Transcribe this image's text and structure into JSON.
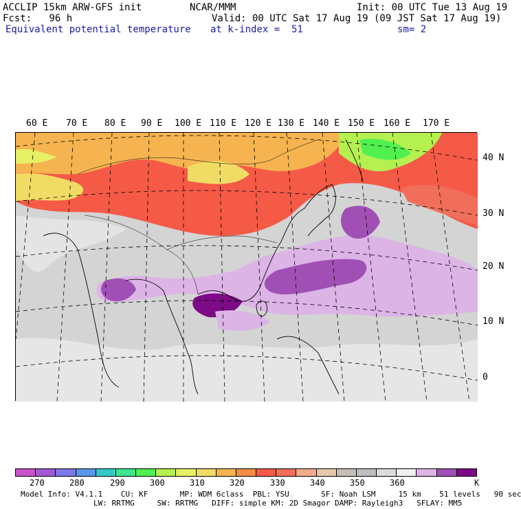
{
  "header": {
    "line1_left": "ACCLIP 15km ARW-GFS init",
    "line1_center": "NCAR/MMM",
    "line1_right": "Init: 00 UTC Tue 13 Aug 19",
    "line2_left": "Fcst:   96 h",
    "line2_right": "Valid: 00 UTC Sat 17 Aug 19 (09 JST Sat 17 Aug 19)",
    "line3_left": "Equivalent potential temperature",
    "line3_center": "at k-index =  51",
    "line3_right": "sm= 2"
  },
  "map": {
    "lon_labels": [
      "60 E",
      "70 E",
      "80 E",
      "90 E",
      "100 E",
      "110 E",
      "120 E",
      "130 E",
      "140 E",
      "150 E",
      "160 E",
      "170 E"
    ],
    "lat_labels": [
      "40 N",
      "30 N",
      "20 N",
      "10 N",
      "0"
    ]
  },
  "colorbar": {
    "colors": [
      "#c852c8",
      "#a05ad2",
      "#7d78e6",
      "#5a96e6",
      "#32c8c8",
      "#3ce68c",
      "#50f050",
      "#b4f050",
      "#e6f064",
      "#f0dc64",
      "#f5b450",
      "#f58c46",
      "#f55a46",
      "#f06e5a",
      "#f0aa8c",
      "#e6c8aa",
      "#c8beb4",
      "#bebebe",
      "#dcdcdc",
      "#f0f0f0",
      "#dcb4e6",
      "#a050b4",
      "#7d0a87"
    ],
    "ticks": [
      "270",
      "280",
      "290",
      "300",
      "310",
      "320",
      "330",
      "340",
      "350",
      "360"
    ],
    "unit": "K"
  },
  "footer": {
    "line1": "Model Info: V4.1.1    CU: KF       MP: WDM 6class  PBL: YSU       SF: Noah LSM     15 km    51 levels   90 sec",
    "line2": "                LW: RRTMG     SW: RRTMG   DIFF: simple KM: 2D Smagor DAMP: Rayleigh3   SFLAY: MM5"
  }
}
